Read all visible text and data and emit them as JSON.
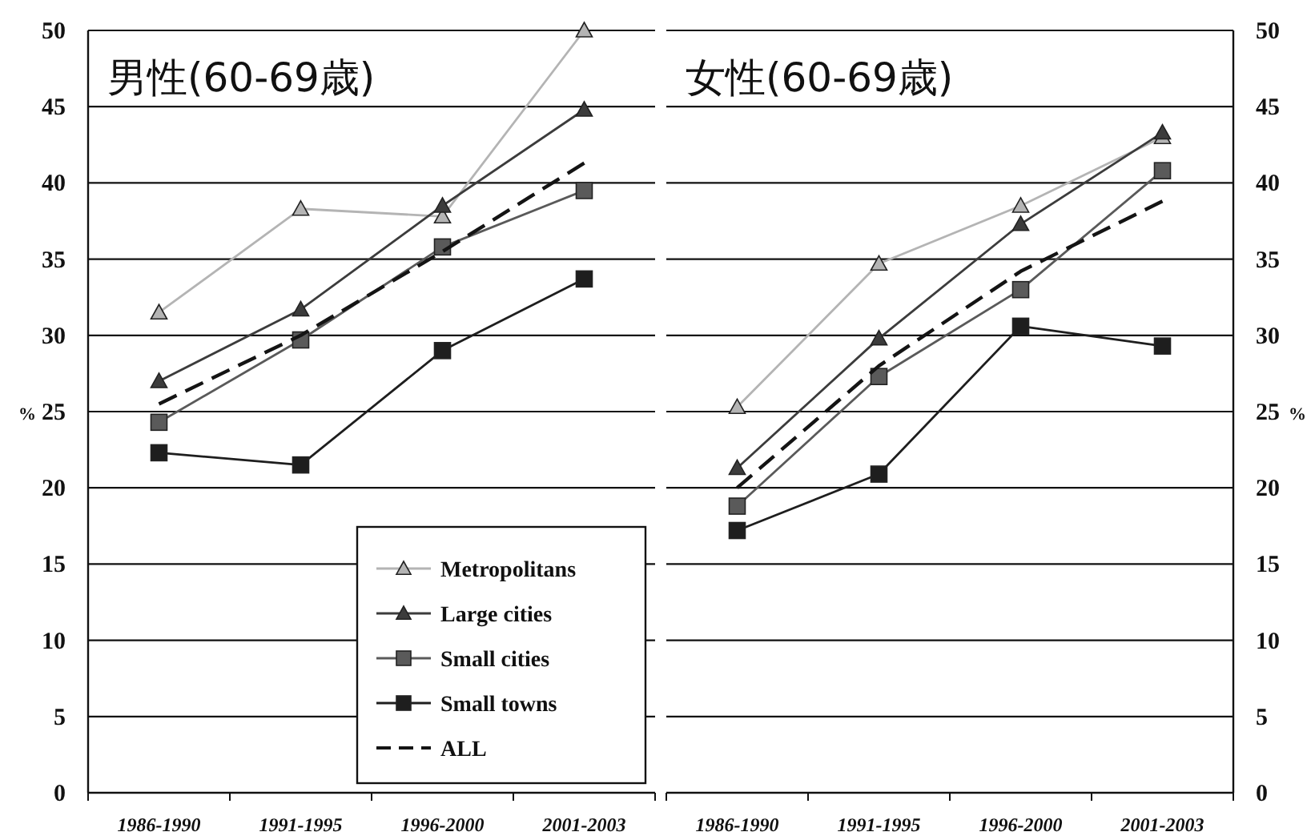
{
  "chart_data": [
    {
      "type": "line",
      "title": "男性(60-69歳)",
      "ylabel": "%",
      "categories": [
        "1986-1990",
        "1991-1995",
        "1996-2000",
        "2001-2003"
      ],
      "ylim": [
        0,
        50
      ],
      "yticks": [
        0,
        5,
        10,
        15,
        20,
        25,
        30,
        35,
        40,
        45,
        50
      ],
      "grid": "y",
      "legend": "bottom right",
      "series": [
        {
          "name": "Metropolitans",
          "color": "#b4b4b4",
          "marker": "triangle",
          "line_style": "solid",
          "values": [
            31.5,
            38.3,
            37.8,
            50
          ]
        },
        {
          "name": "Large cities",
          "color": "#3c3c3c",
          "marker": "triangle",
          "line_style": "solid",
          "values": [
            27,
            31.7,
            38.5,
            44.8
          ]
        },
        {
          "name": "Small cities",
          "color": "#5a5a5a",
          "marker": "square",
          "line_style": "solid",
          "values": [
            24.3,
            29.7,
            35.8,
            39.5
          ]
        },
        {
          "name": "Small towns",
          "color": "#1e1e1e",
          "marker": "square",
          "line_style": "solid",
          "values": [
            22.3,
            21.5,
            29,
            33.7
          ]
        },
        {
          "name": "ALL",
          "color": "#141414",
          "marker": "none",
          "line_style": "dashed",
          "values": [
            25.5,
            30,
            35.5,
            41.3
          ]
        }
      ]
    },
    {
      "type": "line",
      "title": "女性(60-69歳)",
      "ylabel": "%",
      "categories": [
        "1986-1990",
        "1991-1995",
        "1996-2000",
        "2001-2003"
      ],
      "ylim": [
        0,
        50
      ],
      "yticks": [
        0,
        5,
        10,
        15,
        20,
        25,
        30,
        35,
        40,
        45,
        50
      ],
      "grid": "y",
      "series": [
        {
          "color": "#b4b4b4",
          "marker": "triangle",
          "line_style": "solid",
          "values": [
            25.3,
            34.7,
            38.5,
            43
          ]
        },
        {
          "color": "#3c3c3c",
          "marker": "triangle",
          "line_style": "solid",
          "values": [
            21.3,
            29.8,
            37.3,
            43.3
          ]
        },
        {
          "color": "#5a5a5a",
          "marker": "square",
          "line_style": "solid",
          "values": [
            18.8,
            27.3,
            33,
            40.8
          ]
        },
        {
          "color": "#1e1e1e",
          "marker": "square",
          "line_style": "solid",
          "values": [
            17.2,
            20.9,
            30.6,
            29.3
          ]
        },
        {
          "color": "#141414",
          "marker": "none",
          "line_style": "dashed",
          "values": [
            20,
            28,
            34.2,
            38.8
          ]
        }
      ]
    }
  ]
}
